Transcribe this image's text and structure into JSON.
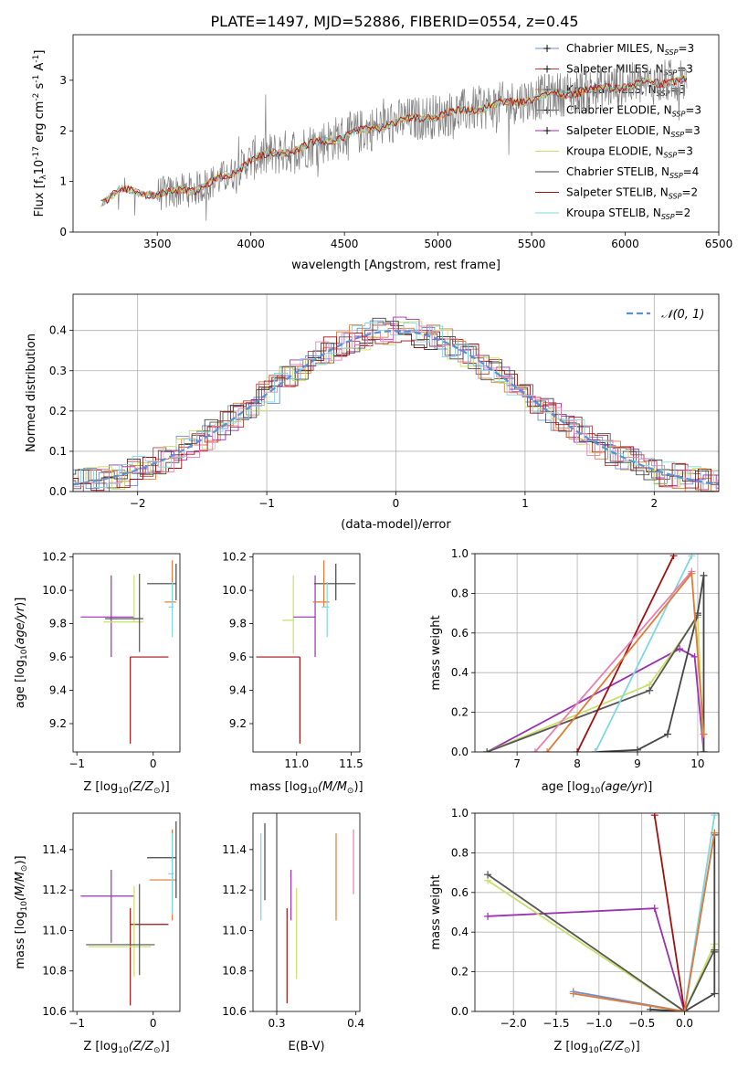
{
  "figure_title": "PLATE=1497, MJD=52886, FIBERID=0554, z=0.45",
  "colors": {
    "chabrier_miles": "#6b8fd6",
    "salpeter_miles": "#c23b3b",
    "kroupa_miles": "#e07b39",
    "chabrier_elodie": "#555555",
    "salpeter_elodie": "#9b30b0",
    "kroupa_elodie": "#c8e06a",
    "chabrier_stelib": "#444444",
    "salpeter_stelib": "#a01010",
    "kroupa_stelib": "#7fd8e0",
    "pink": "#e87fb0",
    "data": "#808080",
    "normal": "#5b8fd6"
  },
  "chart_data": [
    {
      "id": "spectrum",
      "type": "line",
      "xlabel": "wavelength [Angstrom, rest frame]",
      "ylabel": "Flux [f",
      "ylabel_sub": "λ",
      "ylabel_mid": "10",
      "ylabel_sup": "-17",
      "ylabel_end": " erg cm",
      "xlim": [
        3050,
        6500
      ],
      "ylim": [
        0,
        3.9
      ],
      "xticks": [
        "3500",
        "4000",
        "4500",
        "5000",
        "5500",
        "6000",
        "6500"
      ],
      "yticks": [
        "0",
        "1",
        "2",
        "3"
      ],
      "legend": [
        "Chabrier MILES, N",
        "Salpeter MILES, N",
        "Kroupa MILES, N",
        "Chabrier ELODIE, N",
        "Salpeter ELODIE, N",
        "Kroupa ELODIE, N",
        "Chabrier STELIB, N",
        "Salpeter STELIB, N",
        "Kroupa STELIB, N"
      ],
      "legend_nssp": [
        "3",
        "3",
        "3",
        "3",
        "3",
        "3",
        "4",
        "2",
        "2"
      ],
      "legend_placement": "right",
      "model_trend": [
        [
          3200,
          0.6
        ],
        [
          3300,
          0.82
        ],
        [
          3500,
          0.75
        ],
        [
          3700,
          0.85
        ],
        [
          3900,
          1.15
        ],
        [
          4000,
          1.45
        ],
        [
          4200,
          1.6
        ],
        [
          4500,
          1.9
        ],
        [
          4800,
          2.2
        ],
        [
          5000,
          2.3
        ],
        [
          5300,
          2.5
        ],
        [
          5600,
          2.7
        ],
        [
          6000,
          2.9
        ],
        [
          6300,
          3.0
        ]
      ]
    },
    {
      "id": "residuals",
      "type": "line",
      "xlabel": "(data-model)/error",
      "ylabel": "Normed distribution",
      "xlim": [
        -2.5,
        2.5
      ],
      "ylim": [
        0,
        0.49
      ],
      "xticks": [
        "−2",
        "−1",
        "0",
        "1",
        "2"
      ],
      "yticks": [
        "0.0",
        "0.1",
        "0.2",
        "0.3",
        "0.4"
      ],
      "legend": [
        "𝒩(0, 1)"
      ],
      "legend_placement": "top-right",
      "grid": true
    },
    {
      "id": "age_vs_Z",
      "type": "scatter",
      "xlabel": "Z [log",
      "ylabel": "age  [log",
      "xlim": [
        -1.05,
        0.35
      ],
      "ylim": [
        9.03,
        10.22
      ],
      "xticks": [
        "−1",
        "0"
      ],
      "yticks": [
        "9.2",
        "9.4",
        "9.6",
        "9.8",
        "10.0",
        "10.2"
      ],
      "points": [
        {
          "x": -0.55,
          "y": 9.84,
          "xerr": [
            0.4,
            0.3
          ],
          "yerr": [
            0.24,
            0.25
          ],
          "c": "salpeter_elodie"
        },
        {
          "x": -0.3,
          "y": 9.6,
          "xerr": [
            0,
            0.5
          ],
          "yerr": [
            0.52,
            0.0
          ],
          "c": "salpeter_stelib"
        },
        {
          "x": -0.25,
          "y": 9.81,
          "xerr": [
            0.4,
            0.12
          ],
          "yerr": [
            0.0,
            0.28
          ],
          "c": "kroupa_elodie"
        },
        {
          "x": -0.18,
          "y": 9.83,
          "xerr": [
            0.45,
            0.05
          ],
          "yerr": [
            0.2,
            0.27
          ],
          "c": "chabrier_elodie"
        },
        {
          "x": 0.25,
          "y": 9.93,
          "xerr": [
            0.1,
            0.05
          ],
          "yerr": [
            0.03,
            0.25
          ],
          "c": "kroupa_miles"
        },
        {
          "x": 0.3,
          "y": 10.04,
          "xerr": [
            0.38,
            0.0
          ],
          "yerr": [
            0.1,
            0.12
          ],
          "c": "chabrier_stelib"
        },
        {
          "x": 0.25,
          "y": 9.9,
          "xerr": [
            0.05,
            0.02
          ],
          "yerr": [
            0.18,
            0.15
          ],
          "c": "kroupa_stelib"
        }
      ]
    },
    {
      "id": "age_vs_mass",
      "type": "scatter",
      "xlabel": "mass [log",
      "xlim": [
        10.6,
        11.58
      ],
      "ylim": [
        9.03,
        10.22
      ],
      "xticks": [
        "11.0",
        "11.5"
      ],
      "yticks": [
        "9.2",
        "9.4",
        "9.6",
        "9.8",
        "10.0",
        "10.2"
      ],
      "points": [
        {
          "x": 10.97,
          "y": 9.82,
          "xerr": [
            0.1,
            0.0
          ],
          "yerr": [
            0.2,
            0.27
          ],
          "c": "kroupa_elodie"
        },
        {
          "x": 11.17,
          "y": 9.84,
          "xerr": [
            0.2,
            0.0
          ],
          "yerr": [
            0.24,
            0.25
          ],
          "c": "salpeter_elodie"
        },
        {
          "x": 11.03,
          "y": 9.6,
          "xerr": [
            0.4,
            0.0
          ],
          "yerr": [
            0.52,
            0.0
          ],
          "c": "salpeter_stelib"
        },
        {
          "x": 11.36,
          "y": 10.04,
          "xerr": [
            0.2,
            0.18
          ],
          "yerr": [
            0.1,
            0.12
          ],
          "c": "chabrier_stelib"
        },
        {
          "x": 11.25,
          "y": 9.93,
          "xerr": [
            0.1,
            0.05
          ],
          "yerr": [
            0.03,
            0.25
          ],
          "c": "kroupa_miles"
        },
        {
          "x": 11.28,
          "y": 9.9,
          "xerr": [
            0.05,
            0.02
          ],
          "yerr": [
            0.18,
            0.15
          ],
          "c": "kroupa_stelib"
        }
      ]
    },
    {
      "id": "weight_vs_age",
      "type": "line",
      "xlabel": "age  [log",
      "ylabel": "mass weight",
      "xlim": [
        6.3,
        10.35
      ],
      "ylim": [
        0,
        1.0
      ],
      "xticks": [
        "7",
        "8",
        "9",
        "10"
      ],
      "yticks": [
        "0.0",
        "0.2",
        "0.4",
        "0.6",
        "0.8",
        "1.0"
      ],
      "grid": true,
      "series": [
        {
          "c": "salpeter_elodie",
          "x": [
            6.5,
            9.7,
            9.95,
            10.1
          ],
          "y": [
            0.0,
            0.52,
            0.48,
            0.0
          ]
        },
        {
          "c": "kroupa_elodie",
          "x": [
            6.5,
            9.2,
            10.0,
            10.1
          ],
          "y": [
            0.0,
            0.34,
            0.68,
            0.0
          ]
        },
        {
          "c": "chabrier_stelib",
          "x": [
            8.3,
            9.0,
            9.5,
            10.0,
            10.1,
            10.1
          ],
          "y": [
            0.0,
            0.01,
            0.09,
            0.7,
            0.89,
            0.0
          ]
        },
        {
          "c": "chabrier_elodie",
          "x": [
            6.5,
            9.2,
            10.0
          ],
          "y": [
            0.0,
            0.31,
            0.69
          ]
        },
        {
          "c": "kroupa_stelib",
          "x": [
            8.3,
            9.9
          ],
          "y": [
            0.0,
            0.99
          ]
        },
        {
          "c": "salpeter_stelib",
          "x": [
            8.0,
            9.6
          ],
          "y": [
            0.0,
            0.99
          ]
        },
        {
          "c": "pink",
          "x": [
            7.3,
            9.9
          ],
          "y": [
            0.0,
            0.91
          ]
        },
        {
          "c": "kroupa_miles",
          "x": [
            7.5,
            9.9,
            10.1
          ],
          "y": [
            0.0,
            0.9,
            0.09
          ]
        }
      ]
    },
    {
      "id": "mass_vs_Z",
      "type": "scatter",
      "xlabel": "Z [log",
      "ylabel": "mass [log",
      "xlim": [
        -1.05,
        0.35
      ],
      "ylim": [
        10.6,
        11.58
      ],
      "xticks": [
        "−1",
        "0"
      ],
      "yticks": [
        "10.6",
        "10.8",
        "11.0",
        "11.2",
        "11.4"
      ],
      "points": [
        {
          "x": -0.55,
          "y": 11.17,
          "xerr": [
            0.4,
            0.3
          ],
          "yerr": [
            0.23,
            0.13
          ],
          "c": "salpeter_elodie"
        },
        {
          "x": -0.3,
          "y": 11.03,
          "xerr": [
            0,
            0.5
          ],
          "yerr": [
            0.4,
            0.08
          ],
          "c": "salpeter_stelib"
        },
        {
          "x": -0.25,
          "y": 10.92,
          "xerr": [
            0.6,
            0.22
          ],
          "yerr": [
            0.15,
            0.3
          ],
          "c": "kroupa_elodie"
        },
        {
          "x": -0.18,
          "y": 10.93,
          "xerr": [
            0.7,
            0.2
          ],
          "yerr": [
            0.15,
            0.3
          ],
          "c": "chabrier_elodie"
        },
        {
          "x": 0.25,
          "y": 11.25,
          "xerr": [
            0.3,
            0.05
          ],
          "yerr": [
            0.2,
            0.25
          ],
          "c": "kroupa_miles"
        },
        {
          "x": 0.3,
          "y": 11.36,
          "xerr": [
            0.38,
            0.0
          ],
          "yerr": [
            0.2,
            0.18
          ],
          "c": "chabrier_stelib"
        },
        {
          "x": 0.25,
          "y": 11.28,
          "xerr": [
            0.05,
            0.02
          ],
          "yerr": [
            0.2,
            0.2
          ],
          "c": "kroupa_stelib"
        }
      ]
    },
    {
      "id": "mass_vs_ebv",
      "type": "scatter",
      "xlabel": "E(B-V)",
      "xlim": [
        0.27,
        0.405
      ],
      "ylim": [
        10.6,
        11.58
      ],
      "xticks": [
        "0.3",
        "0.4"
      ],
      "yticks": [
        "10.6",
        "10.8",
        "11.0",
        "11.2",
        "11.4"
      ],
      "bars": [
        {
          "x": 0.28,
          "y0": 11.05,
          "y1": 11.48,
          "c": "kroupa_stelib"
        },
        {
          "x": 0.285,
          "y0": 11.15,
          "y1": 11.53,
          "c": "chabrier_stelib"
        },
        {
          "x": 0.3,
          "y0": 10.6,
          "y1": 11.58,
          "c": "chabrier_elodie"
        },
        {
          "x": 0.313,
          "y0": 10.64,
          "y1": 11.11,
          "c": "salpeter_stelib"
        },
        {
          "x": 0.318,
          "y0": 11.05,
          "y1": 11.3,
          "c": "salpeter_elodie"
        },
        {
          "x": 0.325,
          "y0": 10.76,
          "y1": 11.21,
          "c": "kroupa_elodie"
        },
        {
          "x": 0.375,
          "y0": 11.05,
          "y1": 11.48,
          "c": "kroupa_miles"
        },
        {
          "x": 0.397,
          "y0": 11.18,
          "y1": 11.5,
          "c": "pink"
        }
      ]
    },
    {
      "id": "weight_vs_Z",
      "type": "line",
      "xlabel": "Z [log",
      "ylabel": "mass weight",
      "xlim": [
        -2.45,
        0.4
      ],
      "ylim": [
        0,
        1.0
      ],
      "xticks": [
        "−2.0",
        "−1.5",
        "−1.0",
        "−0.5",
        "0.0"
      ],
      "yticks": [
        "0.0",
        "0.2",
        "0.4",
        "0.6",
        "0.8",
        "1.0"
      ],
      "grid": true,
      "series": [
        {
          "c": "salpeter_elodie",
          "x": [
            -2.3,
            -0.35,
            0.0
          ],
          "y": [
            0.48,
            0.52,
            0.0
          ]
        },
        {
          "c": "kroupa_elodie",
          "x": [
            -2.3,
            0.0,
            0.35
          ],
          "y": [
            0.66,
            0.0,
            0.34
          ]
        },
        {
          "c": "chabrier_elodie",
          "x": [
            -2.3,
            0.0,
            0.35
          ],
          "y": [
            0.69,
            0.0,
            0.31
          ]
        },
        {
          "c": "chabrier_stelib",
          "x": [
            -0.4,
            0.0,
            0.35,
            0.35,
            0.35
          ],
          "y": [
            0.01,
            0.0,
            0.09,
            0.89,
            0.3
          ]
        },
        {
          "c": "kroupa_stelib",
          "x": [
            0.0,
            0.35
          ],
          "y": [
            0.0,
            0.99
          ]
        },
        {
          "c": "salpeter_stelib",
          "x": [
            -0.35,
            0.0
          ],
          "y": [
            0.99,
            0.0
          ]
        },
        {
          "c": "chabrier_miles",
          "x": [
            -1.3,
            0.0,
            0.35
          ],
          "y": [
            0.1,
            0.0,
            0.9
          ]
        },
        {
          "c": "kroupa_miles",
          "x": [
            -1.3,
            0.0,
            0.35
          ],
          "y": [
            0.09,
            0.0,
            0.9
          ]
        }
      ]
    }
  ]
}
